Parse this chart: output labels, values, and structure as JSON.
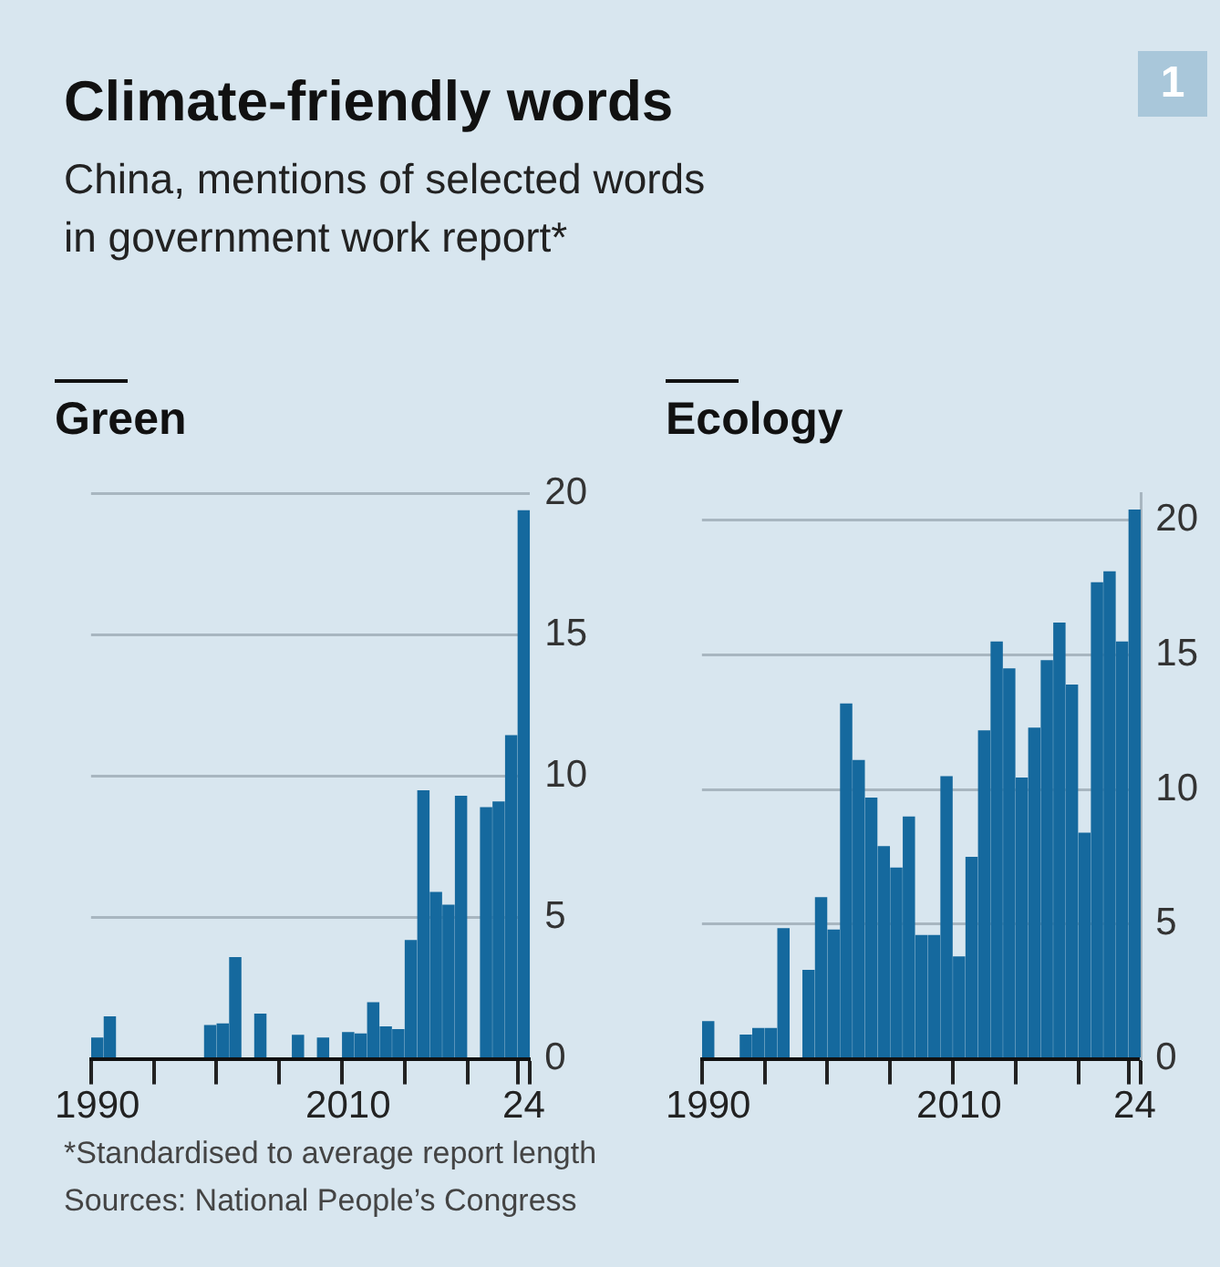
{
  "chart_data": [
    {
      "type": "bar",
      "title": "Green",
      "annotations": [
        "Climate-friendly words",
        "China, mentions of selected words in government work report*",
        "1",
        "*Standardised to average report length",
        "Sources: National People’s Congress"
      ],
      "categories": [
        "1990",
        null,
        null,
        null,
        null,
        null,
        null,
        null,
        null,
        null,
        null,
        null,
        null,
        null,
        null,
        null,
        null,
        null,
        null,
        null,
        "2010",
        null,
        null,
        null,
        null,
        null,
        null,
        null,
        null,
        null,
        null,
        null,
        null,
        null,
        "24"
      ],
      "values": [
        0.75,
        1.5,
        0,
        0,
        0,
        0,
        0,
        0,
        0,
        1.2,
        1.25,
        3.6,
        0,
        1.6,
        0,
        0,
        0.85,
        0,
        0.75,
        0,
        0.95,
        0.9,
        2.0,
        1.15,
        1.05,
        4.2,
        9.5,
        5.9,
        5.45,
        9.3,
        0,
        8.9,
        9.1,
        11.45,
        19.4
      ],
      "color": "#15699e",
      "ylim": [
        0,
        20
      ],
      "yticks": [
        0,
        5,
        10,
        15,
        20
      ],
      "grid": "y",
      "legend": false
    },
    {
      "type": "bar",
      "title": "Ecology",
      "categories": [
        "1990",
        null,
        null,
        null,
        null,
        null,
        null,
        null,
        null,
        null,
        null,
        null,
        null,
        null,
        null,
        null,
        null,
        null,
        null,
        null,
        "2010",
        null,
        null,
        null,
        null,
        null,
        null,
        null,
        null,
        null,
        null,
        null,
        null,
        null,
        "24"
      ],
      "values": [
        1.4,
        0,
        0,
        0.9,
        1.15,
        1.15,
        4.85,
        0,
        3.3,
        6.0,
        4.8,
        13.2,
        11.1,
        9.7,
        7.9,
        7.1,
        9.0,
        4.6,
        4.6,
        10.5,
        3.8,
        7.5,
        12.2,
        15.5,
        14.5,
        10.45,
        12.3,
        14.8,
        16.2,
        13.9,
        8.4,
        17.7,
        18.1,
        15.5,
        20.4
      ],
      "color": "#15699e",
      "ylim": [
        0,
        21
      ],
      "yticks": [
        0,
        5,
        10,
        15,
        20
      ],
      "grid": "y",
      "legend": false
    }
  ]
}
